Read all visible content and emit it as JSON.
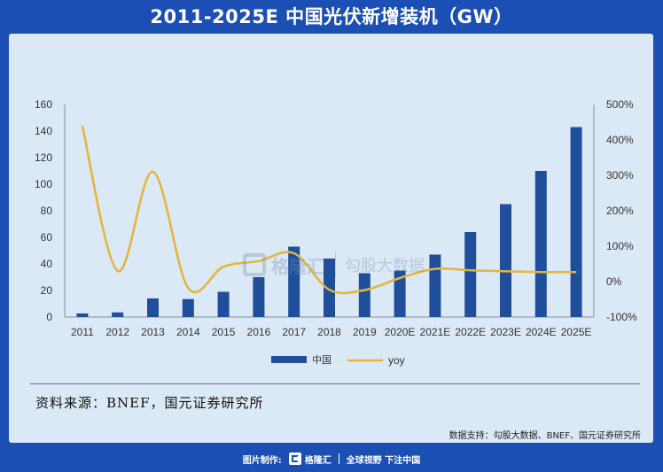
{
  "title": "2011-2025E 中国光伏新增装机（GW）",
  "chart_data": {
    "type": "bar",
    "title": "2011-2025E 中国光伏新增装机（GW）",
    "categories": [
      "2011",
      "2012",
      "2013",
      "2014",
      "2015",
      "2016",
      "2017",
      "2018",
      "2019",
      "2020E",
      "2021E",
      "2022E",
      "2023E",
      "2024E",
      "2025E"
    ],
    "series": [
      {
        "name": "中国",
        "type": "bar",
        "axis": "left",
        "color": "#1f4e9b",
        "values": [
          2.7,
          3.5,
          14,
          13.5,
          19,
          30,
          53,
          44,
          33,
          35,
          47,
          64,
          85,
          110,
          143
        ]
      },
      {
        "name": "yoy",
        "type": "line",
        "axis": "right",
        "color": "#e4b53a",
        "values": [
          440,
          30,
          310,
          -18,
          42,
          58,
          80,
          -23,
          -24,
          10,
          36,
          32,
          29,
          27,
          27
        ]
      }
    ],
    "y_left": {
      "min": 0,
      "max": 160,
      "ticks": [
        0,
        20,
        40,
        60,
        80,
        100,
        120,
        140,
        160
      ]
    },
    "y_right": {
      "min": -100,
      "max": 500,
      "ticks": [
        "-100%",
        "0%",
        "100%",
        "200%",
        "300%",
        "400%",
        "500%"
      ],
      "tick_values": [
        -100,
        0,
        100,
        200,
        300,
        400,
        500
      ]
    },
    "grid": false,
    "legend_position": "bottom-center"
  },
  "legend": {
    "bar_label": "中国",
    "line_label": "yoy"
  },
  "source_text": "资料来源：BNEF，国元证券研究所",
  "support_text": "数据支持：勾股大数据、BNEF、国元证券研究所",
  "watermark": {
    "brand": "格隆汇",
    "partner": "勾股大数据"
  },
  "footer": {
    "made_by": "图片制作:",
    "logo_text": "格隆汇",
    "slogan": "全球视野 下注中国"
  },
  "colors": {
    "background": "#1c4fb3",
    "card": "#dbe8f6",
    "bar": "#1f4e9b",
    "line": "#e4b53a"
  }
}
